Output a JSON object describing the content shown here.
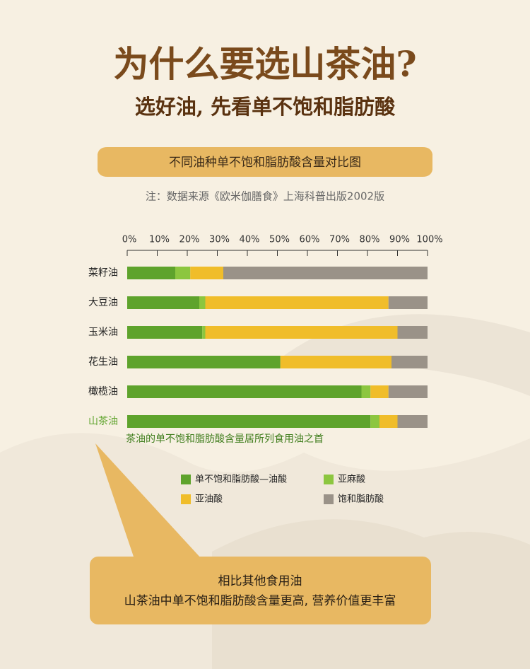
{
  "header": {
    "title": "为什么要选山茶油?",
    "subtitle": "选好油, 先看单不饱和脂肪酸"
  },
  "banner": "不同油种单不饱和脂肪酸含量对比图",
  "note": "注：数据来源《欧米伽膳食》上海科普出版2002版",
  "chart_data": {
    "type": "stacked_bar",
    "categories": [
      "菜籽油",
      "大豆油",
      "玉米油",
      "花生油",
      "橄榄油",
      "山茶油"
    ],
    "highlight_category": 5,
    "highlight_color": "#5ea32c",
    "series": [
      {
        "name": "单不饱和脂肪酸—油酸",
        "color": "#5ea32c",
        "values": [
          16,
          24,
          25,
          51,
          78,
          81
        ]
      },
      {
        "name": "亚麻酸",
        "color": "#8cc63f",
        "values": [
          5,
          2,
          1,
          0,
          3,
          3
        ]
      },
      {
        "name": "亚油酸",
        "color": "#f0bd2a",
        "values": [
          11,
          61,
          64,
          37,
          6,
          6
        ]
      },
      {
        "name": "饱和脂肪酸",
        "color": "#9a9288",
        "values": [
          68,
          13,
          10,
          12,
          13,
          10
        ]
      }
    ],
    "xlim": [
      0,
      100
    ],
    "xticks": [
      {
        "value": 0,
        "label": "0%"
      },
      {
        "value": 10,
        "label": "10%"
      },
      {
        "value": 20,
        "label": "20%"
      },
      {
        "value": 30,
        "label": "30%"
      },
      {
        "value": 40,
        "label": "40%"
      },
      {
        "value": 50,
        "label": "50%"
      },
      {
        "value": 60,
        "label": "60%"
      },
      {
        "value": 70,
        "label": "70%"
      },
      {
        "value": 80,
        "label": "80%"
      },
      {
        "value": 90,
        "label": "90%"
      },
      {
        "value": 100,
        "label": "100%"
      }
    ],
    "annotation": "茶油的单不饱和脂肪酸含量居所列食用油之首"
  },
  "callout": {
    "lines": [
      "相比其他食用油",
      "山茶油中单不饱和脂肪酸含量更高, 营养价值更丰富"
    ]
  }
}
